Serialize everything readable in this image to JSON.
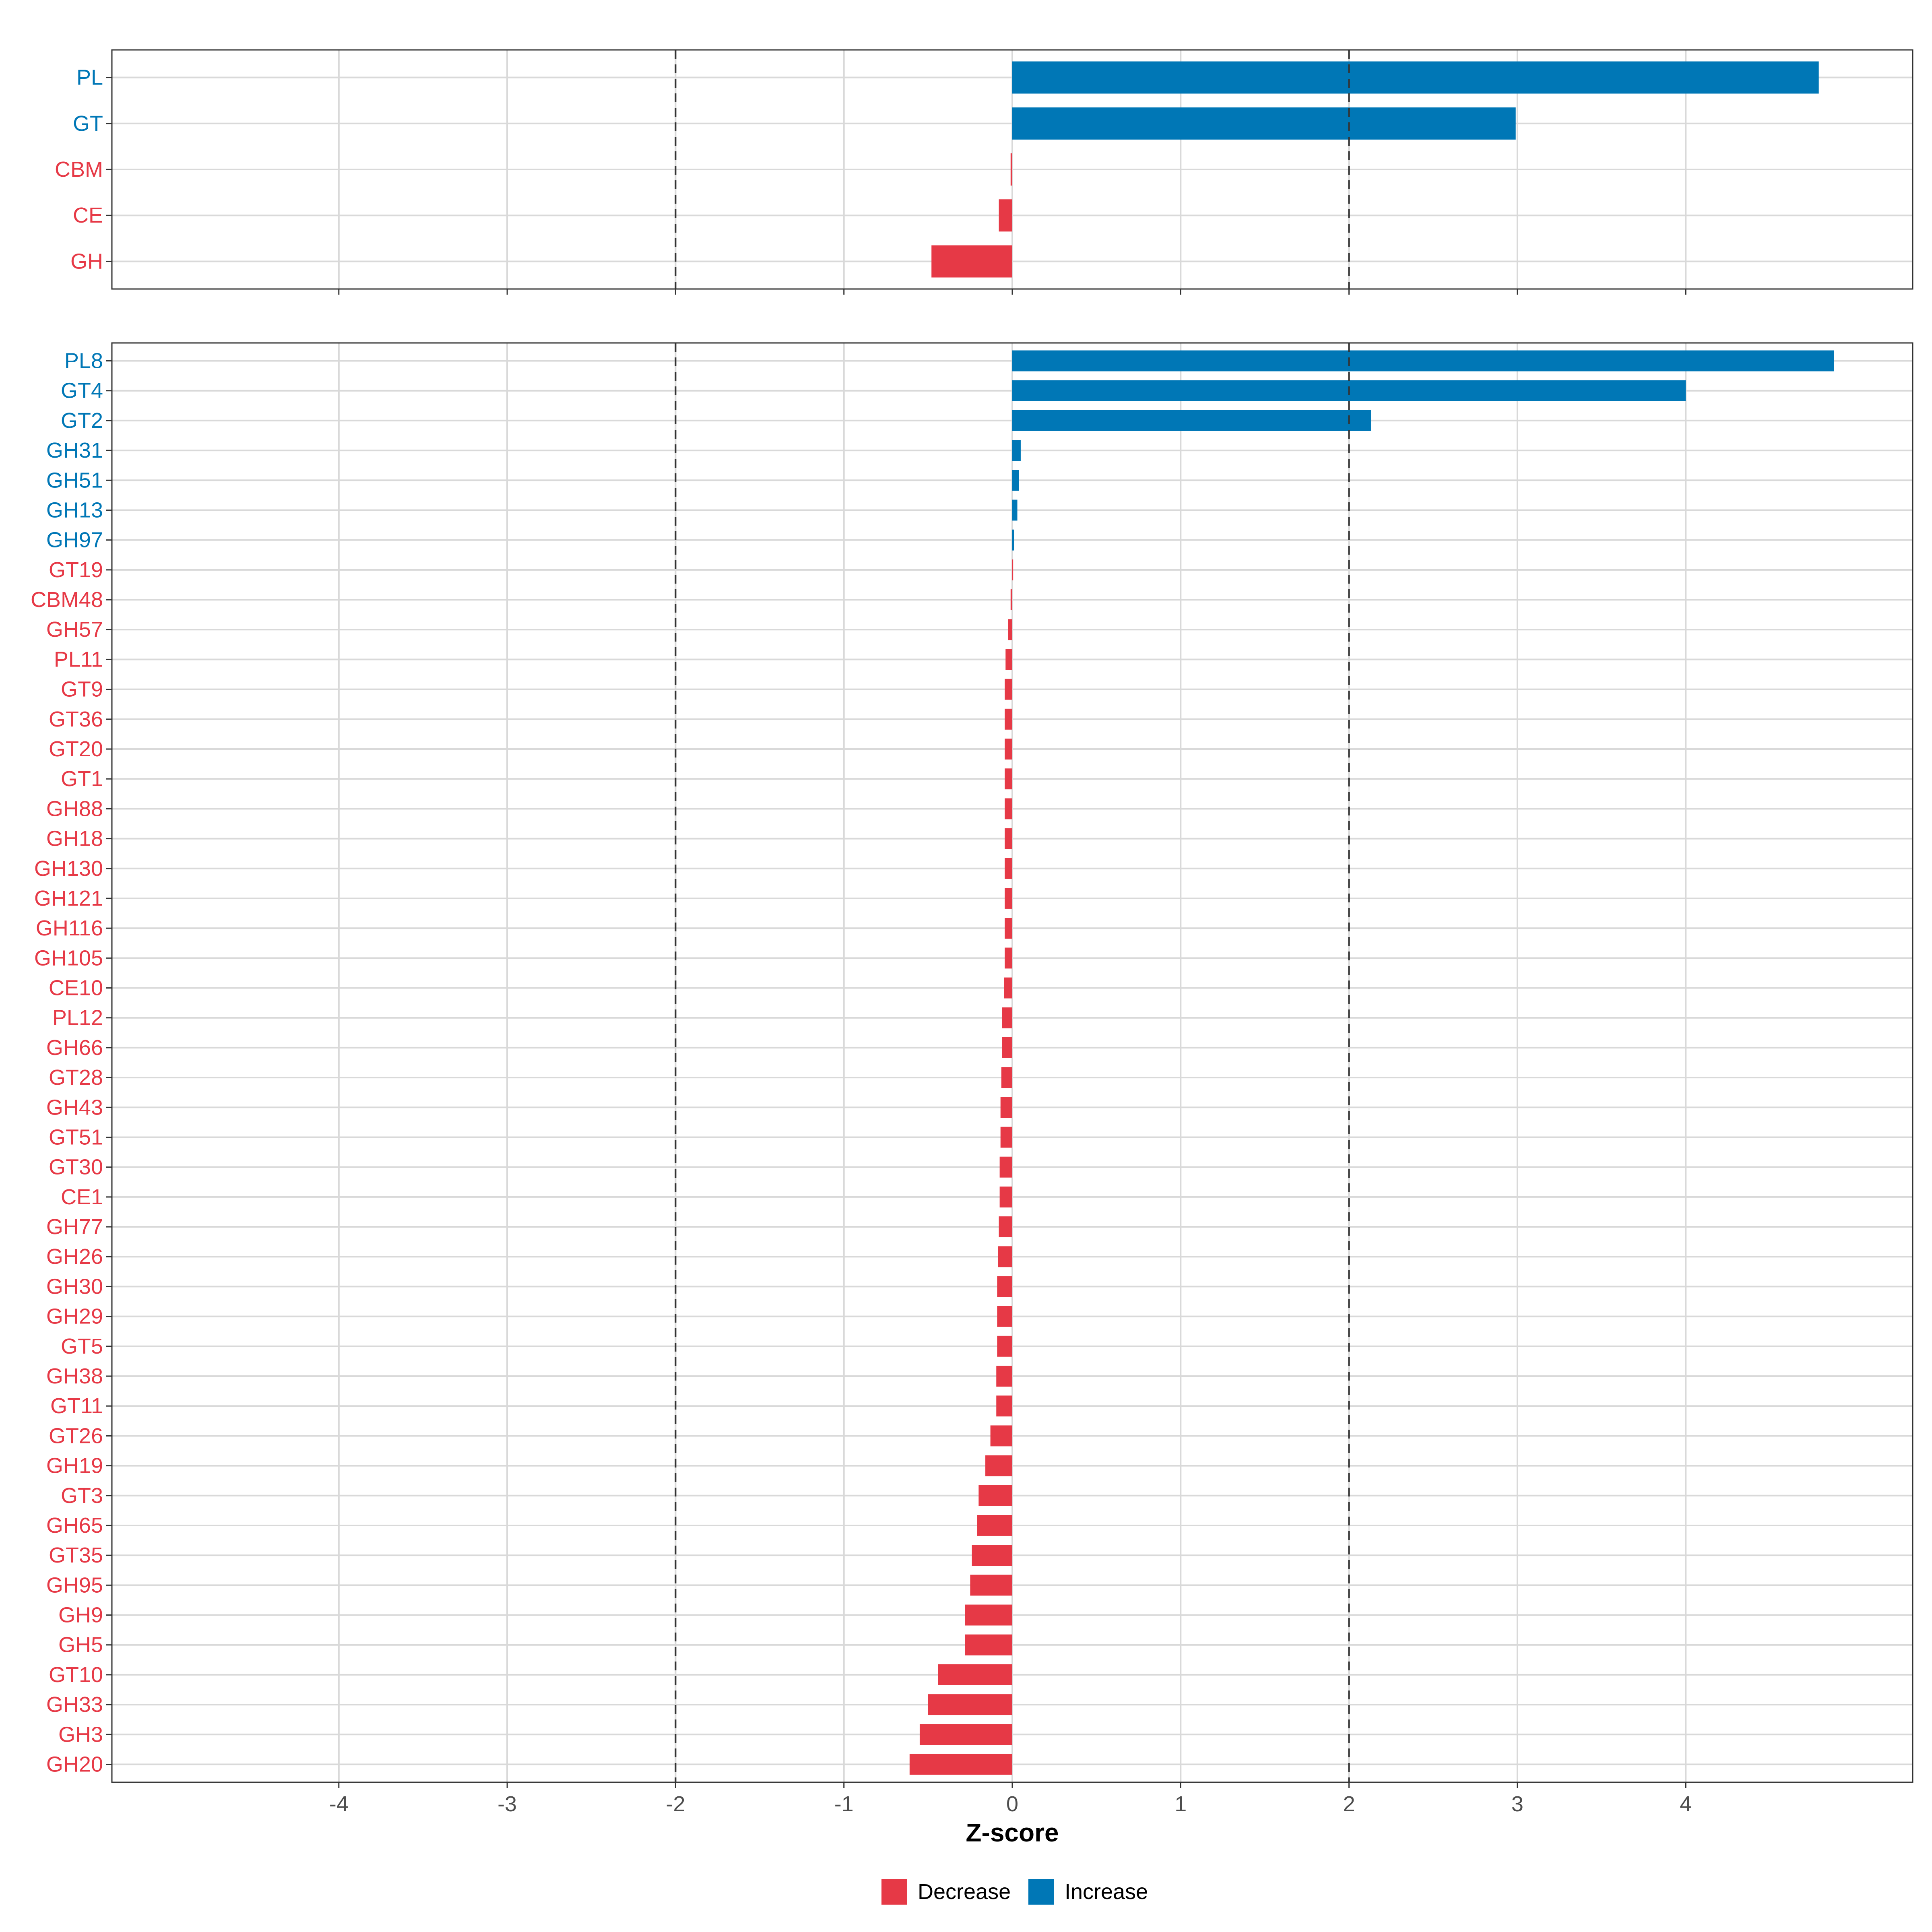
{
  "chart_data": {
    "type": "bar",
    "orientation": "horizontal",
    "xlabel": "Z-score",
    "xlim": [
      -5.35,
      5.35
    ],
    "xticks": [
      -4,
      -3,
      -2,
      -1,
      0,
      1,
      2,
      3,
      4
    ],
    "threshold_lines": [
      -2,
      2
    ],
    "grid": true,
    "legend_position": "bottom",
    "legend": [
      {
        "label": "Decrease",
        "color": "#E63946"
      },
      {
        "label": "Increase",
        "color": "#0077B6"
      }
    ],
    "panels": [
      {
        "categories": [
          "PL",
          "GT",
          "CBM",
          "CE",
          "GH"
        ],
        "values": [
          4.79,
          2.99,
          -0.01,
          -0.08,
          -0.48
        ]
      },
      {
        "categories": [
          "PL8",
          "GT4",
          "GT2",
          "GH31",
          "GH51",
          "GH13",
          "GH97",
          "GT19",
          "CBM48",
          "GH57",
          "PL11",
          "GT9",
          "GT36",
          "GT20",
          "GT1",
          "GH88",
          "GH18",
          "GH130",
          "GH121",
          "GH116",
          "GH105",
          "CE10",
          "PL12",
          "GH66",
          "GT28",
          "GH43",
          "GT51",
          "GT30",
          "CE1",
          "GH77",
          "GH26",
          "GH30",
          "GH29",
          "GT5",
          "GH38",
          "GT11",
          "GT26",
          "GH19",
          "GT3",
          "GH65",
          "GT35",
          "GH95",
          "GH9",
          "GH5",
          "GT10",
          "GH33",
          "GH3",
          "GH20"
        ],
        "values": [
          4.88,
          4.0,
          2.13,
          0.05,
          0.04,
          0.03,
          0.01,
          -0.002,
          -0.01,
          -0.025,
          -0.04,
          -0.045,
          -0.045,
          -0.045,
          -0.045,
          -0.045,
          -0.045,
          -0.045,
          -0.045,
          -0.045,
          -0.045,
          -0.05,
          -0.06,
          -0.06,
          -0.065,
          -0.07,
          -0.07,
          -0.075,
          -0.075,
          -0.08,
          -0.085,
          -0.09,
          -0.09,
          -0.09,
          -0.095,
          -0.095,
          -0.13,
          -0.16,
          -0.2,
          -0.21,
          -0.24,
          -0.25,
          -0.28,
          -0.28,
          -0.44,
          -0.5,
          -0.55,
          -0.61
        ]
      }
    ]
  }
}
